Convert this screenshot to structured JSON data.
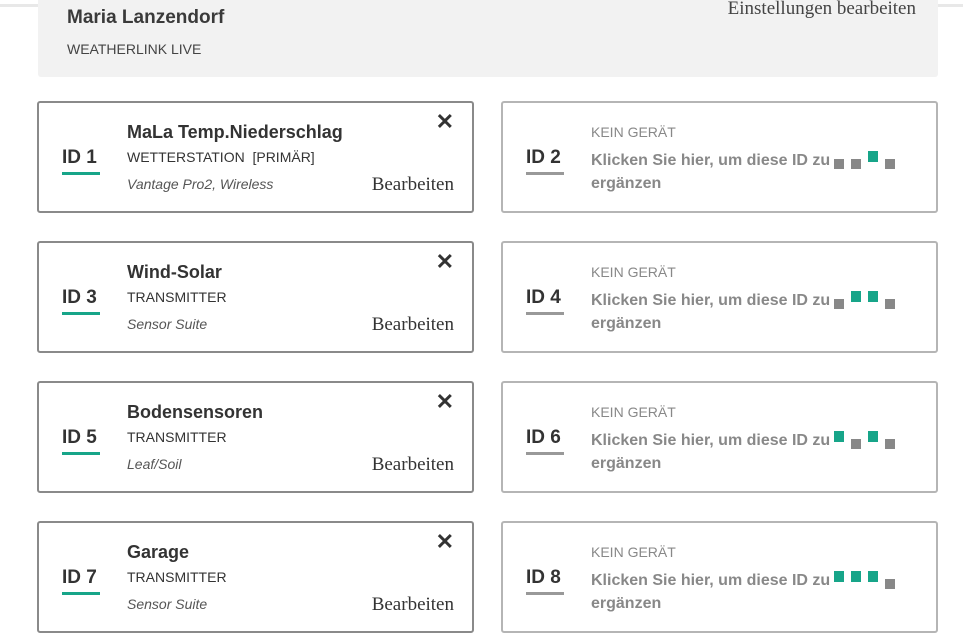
{
  "header": {
    "name": "Maria Lanzendorf",
    "device": "WEATHERLINK LIVE",
    "edit_settings": "Einstellungen bearbeiten"
  },
  "colors": {
    "accent": "#17a589",
    "inactive": "#888888"
  },
  "slots": [
    {
      "id": "ID 1",
      "title": "MaLa Temp.Niederschlag",
      "type": "WETTERSTATION  [PRIMÄR]",
      "model": "Vantage Pro2, Wireless",
      "edit": "Bearbeiten",
      "close": "✕"
    },
    {
      "id": "ID 2",
      "status": "KEIN GERÄT",
      "action": "Klicken Sie hier, um diese ID zu",
      "action2": "ergänzen",
      "dips": [
        0,
        0,
        1,
        0
      ]
    },
    {
      "id": "ID 3",
      "title": "Wind-Solar",
      "type": "TRANSMITTER",
      "model": "Sensor Suite",
      "edit": "Bearbeiten",
      "close": "✕"
    },
    {
      "id": "ID 4",
      "status": "KEIN GERÄT",
      "action": "Klicken Sie hier, um diese ID zu",
      "action2": "ergänzen",
      "dips": [
        0,
        1,
        1,
        0
      ]
    },
    {
      "id": "ID 5",
      "title": "Bodensensoren",
      "type": "TRANSMITTER",
      "model": "Leaf/Soil",
      "edit": "Bearbeiten",
      "close": "✕"
    },
    {
      "id": "ID 6",
      "status": "KEIN GERÄT",
      "action": "Klicken Sie hier, um diese ID zu",
      "action2": "ergänzen",
      "dips": [
        1,
        0,
        1,
        0
      ]
    },
    {
      "id": "ID 7",
      "title": "Garage",
      "type": "TRANSMITTER",
      "model": "Sensor Suite",
      "edit": "Bearbeiten",
      "close": "✕"
    },
    {
      "id": "ID 8",
      "status": "KEIN GERÄT",
      "action": "Klicken Sie hier, um diese ID zu",
      "action2": "ergänzen",
      "dips": [
        1,
        1,
        1,
        0
      ]
    }
  ]
}
